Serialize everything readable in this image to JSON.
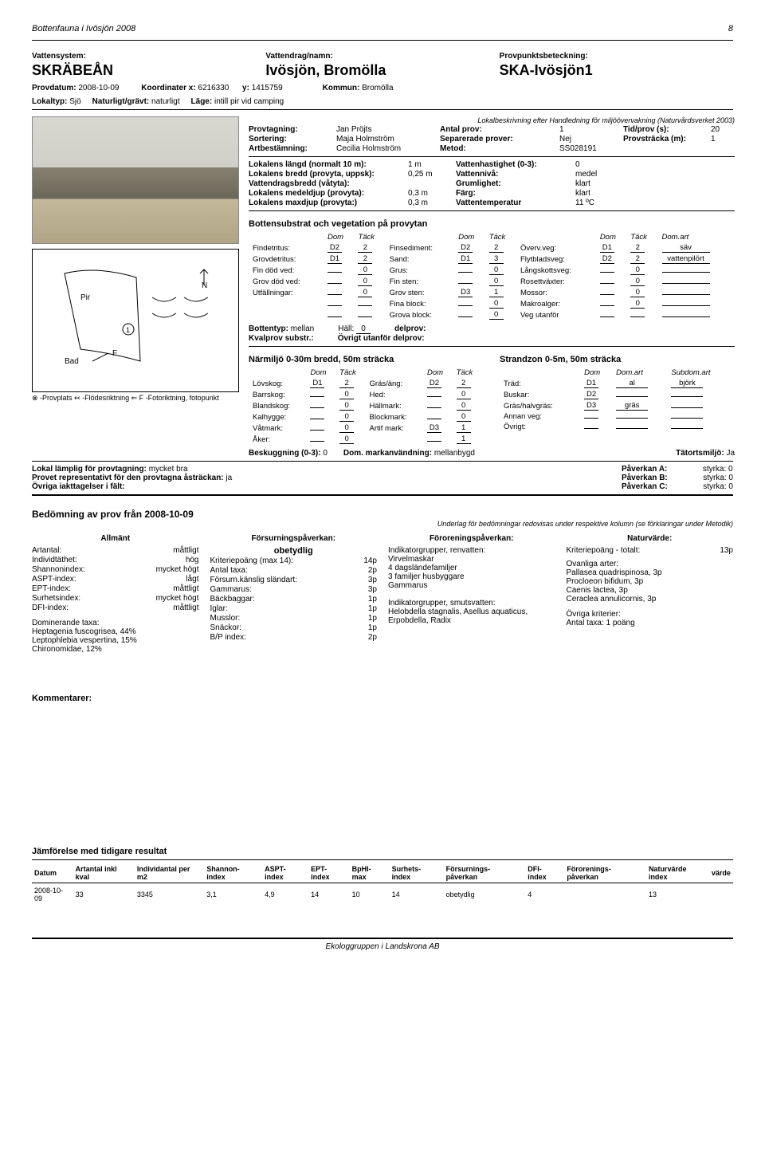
{
  "header": {
    "title": "Bottenfauna i Ivösjön 2008",
    "page": "8"
  },
  "top": {
    "vattensystem_label": "Vattensystem:",
    "vattensystem": "SKRÄBEÅN",
    "vattendrag_label": "Vattendrag/namn:",
    "vattendrag": "Ivösjön, Bromölla",
    "provpunkt_label": "Provpunktsbeteckning:",
    "provpunkt": "SKA-Ivösjön1",
    "provdatum_label": "Provdatum:",
    "provdatum": "2008-10-09",
    "koord_x_label": "Koordinater x:",
    "koord_x": "6216330",
    "koord_y_label": "y:",
    "koord_y": "1415759",
    "kommun_label": "Kommun:",
    "kommun": "Bromölla",
    "lokaltyp_label": "Lokaltyp:",
    "lokaltyp": "Sjö",
    "naturligt_label": "Naturligt/grävt:",
    "naturligt": "naturligt",
    "lage_label": "Läge:",
    "lage": "intill pir vid camping"
  },
  "provtagning": {
    "note": "Lokalbeskrivning efter Handledning för miljöövervakning (Naturvårdsverket 2003)",
    "rows": [
      {
        "l": "Provtagning:",
        "v": "Jan Pröjts",
        "l2": "Antal prov:",
        "v2": "1",
        "l3": "Tid/prov (s):",
        "v3": "20"
      },
      {
        "l": "Sortering:",
        "v": "Maja Holmström",
        "l2": "Separerade prover:",
        "v2": "Nej",
        "l3": "Provsträcka (m):",
        "v3": "1"
      },
      {
        "l": "Artbestämning:",
        "v": "Cecilia Holmström",
        "l2": "Metod:",
        "v2": "SS028191",
        "l3": "",
        "v3": ""
      }
    ]
  },
  "lokalens": [
    {
      "l": "Lokalens längd (normalt 10 m):",
      "v": "1 m",
      "l2": "Vattenhastighet (0-3):",
      "v2": "0"
    },
    {
      "l": "Lokalens bredd (provyta, uppsk):",
      "v": "0,25 m",
      "l2": "Vattennivå:",
      "v2": "medel"
    },
    {
      "l": "Vattendragsbredd (våtyta):",
      "v": "",
      "l2": "Grumlighet:",
      "v2": "klart"
    },
    {
      "l": "Lokalens medeldjup (provyta):",
      "v": "0,3 m",
      "l2": "Färg:",
      "v2": "klart"
    },
    {
      "l": "Lokalens maxdjup (provyta:)",
      "v": "0,3 m",
      "l2": "Vattentemperatur",
      "v2": "11 ºC"
    }
  ],
  "substrate": {
    "title": "Bottensubstrat och vegetation på provytan",
    "cols": [
      "Dom",
      "Täck",
      "",
      "Dom",
      "Täck",
      "",
      "Dom",
      "Täck",
      "Dom.art"
    ],
    "rows": [
      [
        "Findetritus:",
        "D2",
        "2",
        "Finsediment:",
        "D2",
        "2",
        "Överv.veg:",
        "D1",
        "2",
        "säv"
      ],
      [
        "Grovdetritus:",
        "D1",
        "2",
        "Sand:",
        "D1",
        "3",
        "Flytbladsveg:",
        "D2",
        "2",
        "vattenpilört"
      ],
      [
        "Fin död ved:",
        "",
        "0",
        "Grus:",
        "",
        "0",
        "Långskottsveg:",
        "",
        "0",
        ""
      ],
      [
        "Grov död ved:",
        "",
        "0",
        "Fin sten:",
        "",
        "0",
        "Rosettväxter:",
        "",
        "0",
        ""
      ],
      [
        "Utfällningar:",
        "",
        "0",
        "Grov sten:",
        "D3",
        "1",
        "Mossor:",
        "",
        "0",
        ""
      ],
      [
        "",
        "",
        "",
        "Fina block:",
        "",
        "0",
        "Makroalger:",
        "",
        "0",
        ""
      ],
      [
        "",
        "",
        "",
        "Grova block:",
        "",
        "0",
        "Veg utanför",
        "",
        "",
        ""
      ]
    ],
    "bottentyp_label": "Bottentyp:",
    "bottentyp": "mellan",
    "hall_label": "Häll:",
    "hall": "0",
    "delprov_label": "delprov:",
    "kvalprov_label": "Kvalprov substr.:",
    "ovrigt_label": "Övrigt utanför delprov:"
  },
  "narmiljo": {
    "left_title": "Närmiljö 0-30m bredd, 50m sträcka",
    "right_title": "Strandzon 0-5m, 50m sträcka",
    "left_cols": [
      "Dom",
      "Täck",
      "",
      "Dom",
      "Täck"
    ],
    "right_cols": [
      "Dom",
      "Dom.art",
      "Subdom.art"
    ],
    "left_rows": [
      [
        "Lövskog:",
        "D1",
        "2",
        "Gräs/äng:",
        "D2",
        "2"
      ],
      [
        "Barrskog:",
        "",
        "0",
        "Hed:",
        "",
        "0"
      ],
      [
        "Blandskog:",
        "",
        "0",
        "Hällmark:",
        "",
        "0"
      ],
      [
        "Kalhygge:",
        "",
        "0",
        "Blockmark:",
        "",
        "0"
      ],
      [
        "Våtmark:",
        "",
        "0",
        "Artif mark:",
        "D3",
        "1"
      ],
      [
        "Åker:",
        "",
        "0",
        "",
        "",
        "1"
      ]
    ],
    "right_rows": [
      [
        "Träd:",
        "D1",
        "al",
        "björk"
      ],
      [
        "Buskar:",
        "D2",
        "",
        ""
      ],
      [
        "Gräs/halvgräs:",
        "D3",
        "gräs",
        ""
      ],
      [
        "Annan veg:",
        "",
        "",
        ""
      ],
      [
        "Övrigt:",
        "",
        "",
        ""
      ]
    ],
    "besk_label": "Beskuggning (0-3):",
    "besk": "0",
    "mark_label": "Dom. markanvändning:",
    "mark": "mellanbygd",
    "tatort_label": "Tätortsmiljö:",
    "tatort": "Ja"
  },
  "suitability": {
    "l1_label": "Lokal lämplig för provtagning:",
    "l1": "mycket bra",
    "l2_label": "Provet representativt för den provtagna åsträckan:",
    "l2": "ja",
    "l3_label": "Övriga iakttagelser i fält:",
    "pa_label": "Påverkan A:",
    "pa": "styrka: 0",
    "pb_label": "Påverkan B:",
    "pb": "styrka: 0",
    "pc_label": "Påverkan C:",
    "pc": "styrka: 0"
  },
  "assessment": {
    "title_prefix": "Bedömning av prov från",
    "title_date": "2008-10-09",
    "note": "Underlag för bedömningar redovisas under respektive kolumn (se förklaringar under Metodik)",
    "allmant_title": "Allmänt",
    "allmant": [
      {
        "l": "Artantal:",
        "v": "måttligt"
      },
      {
        "l": "Individtäthet:",
        "v": "hög"
      },
      {
        "l": "Shannonindex:",
        "v": "mycket högt"
      },
      {
        "l": "ASPT-index:",
        "v": "lågt"
      },
      {
        "l": "EPT-index:",
        "v": "måttligt"
      },
      {
        "l": "Surhetsindex:",
        "v": "mycket högt"
      },
      {
        "l": "DFI-index:",
        "v": "måttligt"
      }
    ],
    "dom_label": "Dominerande taxa:",
    "dom_taxa": [
      "Heptagenia fuscogrisea, 44%",
      "Leptophlebia vespertina, 15%",
      "Chironomidae, 12%"
    ],
    "forsurn_title": "Försurningspåverkan:",
    "forsurn_value": "obetydlig",
    "forsurn_rows": [
      {
        "l": "Kriteriepoäng (max 14):",
        "v": "14p"
      },
      {
        "l": "Antal taxa:",
        "v": "2p"
      },
      {
        "l": "Försurn.känslig sländart:",
        "v": "3p"
      },
      {
        "l": "Gammarus:",
        "v": "3p"
      },
      {
        "l": "Bäckbaggar:",
        "v": "1p"
      },
      {
        "l": "Iglar:",
        "v": "1p"
      },
      {
        "l": "Musslor:",
        "v": "1p"
      },
      {
        "l": "Snäckor:",
        "v": "1p"
      },
      {
        "l": "B/P index:",
        "v": "2p"
      }
    ],
    "fororen_title": "Föroreningspåverkan:",
    "fororen_lines": [
      "Indikatorgrupper, renvatten:",
      "Virvelmaskar",
      "4 dagsländefamiljer",
      "3 familjer husbyggare",
      "Gammarus",
      "",
      "Indikatorgrupper, smutsvatten:",
      "Helobdella stagnalis, Asellus aquaticus,",
      "Erpobdella, Radix"
    ],
    "natur_title": "Naturvärde:",
    "natur_rows": [
      {
        "l": "Kriteriepoäng - totalt:",
        "v": "13p"
      }
    ],
    "natur_lines_label": "Ovanliga arter:",
    "natur_lines": [
      "Pallasea quadrispinosa, 3p",
      "Procloeon bifidum, 3p",
      "Caenis lactea, 3p",
      "Ceraclea annulicornis, 3p"
    ],
    "natur_extra_label": "Övriga kriterier:",
    "natur_extra": "Antal taxa: 1 poäng"
  },
  "comments_title": "Kommentarer:",
  "compare": {
    "title": "Jämförelse med tidigare resultat",
    "headers": [
      "Datum",
      "Artantal inkl kval",
      "Individantal per m2",
      "Shannon- index",
      "ASPT- index",
      "EPT- index",
      "BpHI- max",
      "Surhets- index",
      "Försurnings- påverkan",
      "DFI- index",
      "Förorenings- påverkan",
      "Naturvärde index",
      "värde"
    ],
    "row": [
      "2008-10-09",
      "33",
      "3345",
      "3,1",
      "4,9",
      "14",
      "10",
      "14",
      "obetydlig",
      "4",
      "",
      "13",
      ""
    ]
  },
  "map": {
    "pir": "Pir",
    "bad": "Bad",
    "f": "F",
    "n": "N",
    "marker": "①"
  },
  "footer": "Ekologgruppen i Landskrona AB",
  "legend": "⊗ -Provplats     ↢ -Flödesriktning   ⇐ F -Fotoriktning, fotopunkt"
}
